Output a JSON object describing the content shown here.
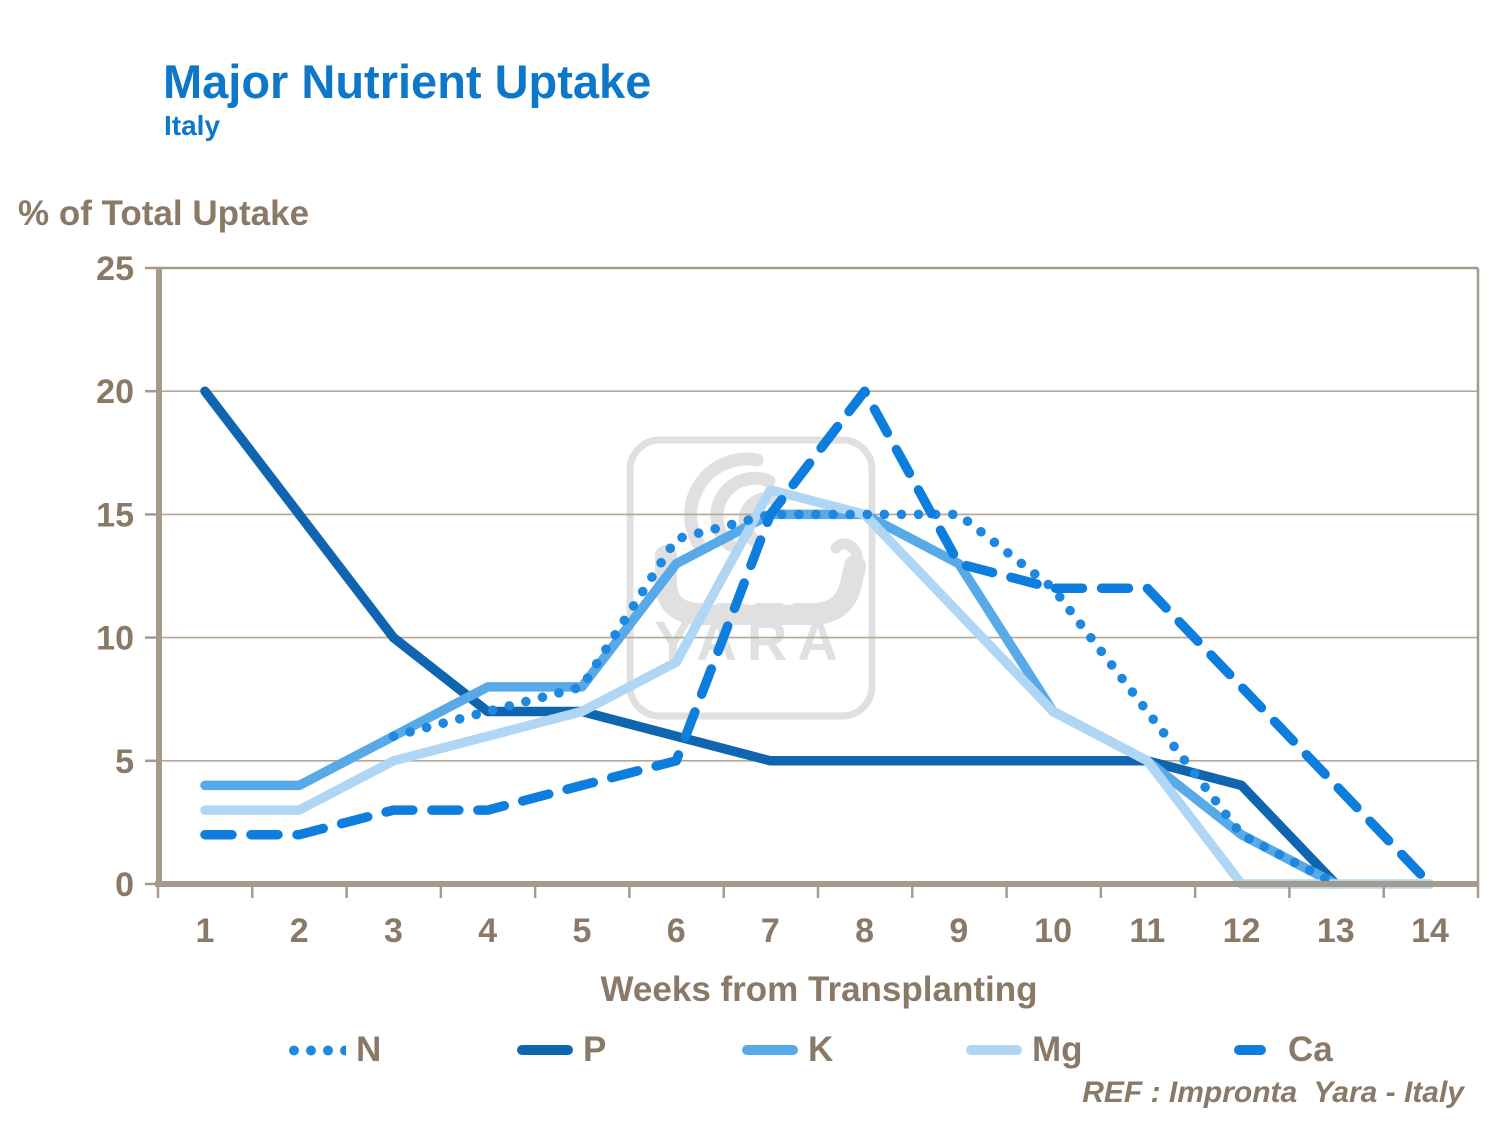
{
  "header": {
    "title": "Major Nutrient Uptake",
    "subtitle": "Italy"
  },
  "y_axis_title": "% of Total Uptake",
  "x_axis_title": "Weeks from Transplanting",
  "ref_note": "REF : Impronta  Yara - Italy",
  "watermark": {
    "text": "YARA",
    "icon": "yara-viking-ship-logo"
  },
  "colors": {
    "title_blue": "#0d78c9",
    "axis_text_brown": "#8a7967",
    "gridline_tan": "#b3a795",
    "frame_tan": "#a69b8b",
    "watermark_gray": "#e0e0e0"
  },
  "chart_data": {
    "type": "line",
    "title": "Major Nutrient Uptake",
    "subtitle": "Italy",
    "xlabel": "Weeks from Transplanting",
    "ylabel": "% of Total Uptake",
    "x": [
      1,
      2,
      3,
      4,
      5,
      6,
      7,
      8,
      9,
      10,
      11,
      12,
      13,
      14
    ],
    "xlim": [
      1,
      14
    ],
    "ylim": [
      0,
      25
    ],
    "yticks": [
      0,
      5,
      10,
      15,
      20,
      25
    ],
    "grid": "horizontal-only",
    "legend_position": "bottom",
    "series": [
      {
        "name": "N",
        "style": "dotted",
        "color": "#1e87e0",
        "values": [
          null,
          null,
          6,
          7,
          8,
          14,
          15,
          15,
          15,
          12,
          7,
          2,
          0,
          null
        ]
      },
      {
        "name": "P",
        "style": "solid",
        "color": "#1065b0",
        "values": [
          20,
          15,
          10,
          7,
          7,
          6,
          5,
          5,
          5,
          5,
          5,
          4,
          0,
          null
        ]
      },
      {
        "name": "K",
        "style": "solid",
        "color": "#57a9e8",
        "values": [
          4,
          4,
          6,
          8,
          8,
          13,
          15,
          15,
          13,
          7,
          5,
          2,
          0,
          null
        ]
      },
      {
        "name": "Mg",
        "style": "solid",
        "color": "#b0d6f5",
        "values": [
          3,
          3,
          5,
          6,
          7,
          9,
          16,
          15,
          11,
          7,
          5,
          0,
          0,
          0
        ]
      },
      {
        "name": "Ca",
        "style": "dashed",
        "color": "#0e7ede",
        "values": [
          2,
          2,
          3,
          3,
          4,
          5,
          15,
          20,
          13,
          12,
          12,
          8,
          4,
          0
        ]
      }
    ]
  }
}
